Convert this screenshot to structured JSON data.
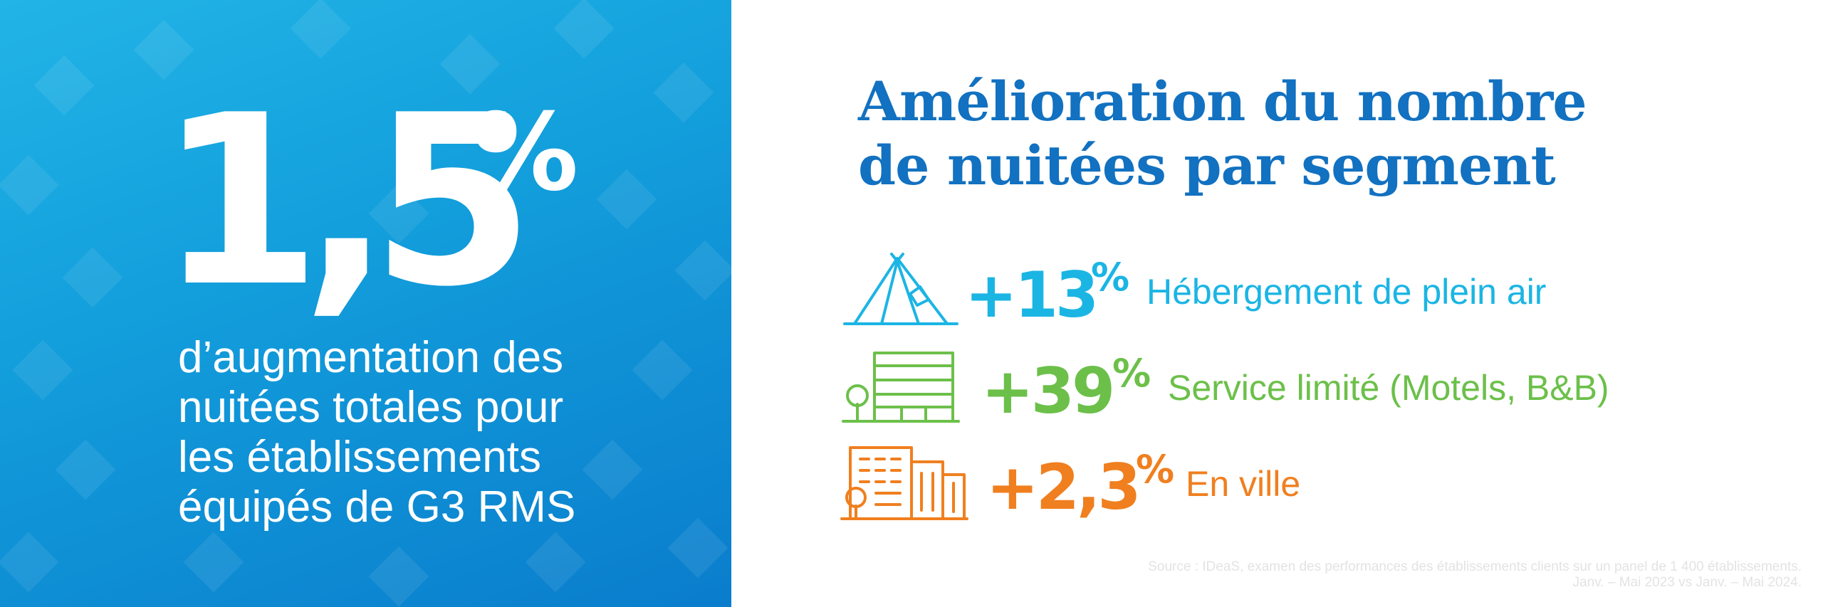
{
  "highlight": {
    "value": "1,5",
    "percent": "%",
    "description_lines": [
      "d’augmentation des",
      "nuitées totales pour",
      "les établissements",
      "équipés de G3 RMS"
    ]
  },
  "title_lines": [
    "Amélioration du nombre",
    "de nuitées par segment"
  ],
  "segments": [
    {
      "icon": "tent-icon",
      "value": "+13",
      "percent": "%",
      "label": "Hébergement de plein air",
      "color": "#1bb5e4"
    },
    {
      "icon": "motel-icon",
      "value": "+39",
      "percent": "%",
      "label": "Service limité (Motels, B&B)",
      "color": "#6cc04a"
    },
    {
      "icon": "city-buildings-icon",
      "value": "+2,3",
      "percent": "%",
      "label": "En ville",
      "color": "#f07f1f"
    }
  ],
  "source_lines": [
    "Source : IDeaS, examen des performances des établissements clients sur un panel de 1 400 établissements.",
    "Janv. – Mai 2023 vs Janv. – Mai 2024."
  ],
  "colors": {
    "panel_blue": "#139fdc",
    "title_blue": "#1271c0"
  }
}
